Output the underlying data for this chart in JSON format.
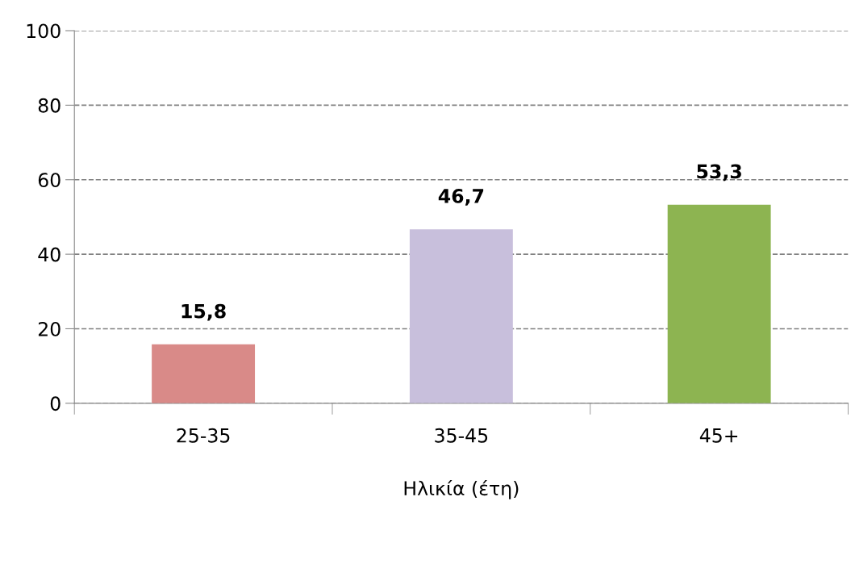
{
  "chart_data": {
    "type": "bar",
    "xlabel": "Ηλικία (έτη)",
    "categories": [
      "25-35",
      "35-45",
      "45+"
    ],
    "values": [
      15.8,
      46.7,
      53.3
    ],
    "colors": [
      "#d98a88",
      "#c8bfdc",
      "#8db451"
    ],
    "value_labels": [
      "15,8",
      "46,7",
      "53,3"
    ],
    "ylim": [
      0,
      100
    ],
    "yticks": [
      0,
      20,
      40,
      60,
      80,
      100
    ],
    "grid": "y",
    "line_style": "dashed",
    "legend": false
  }
}
